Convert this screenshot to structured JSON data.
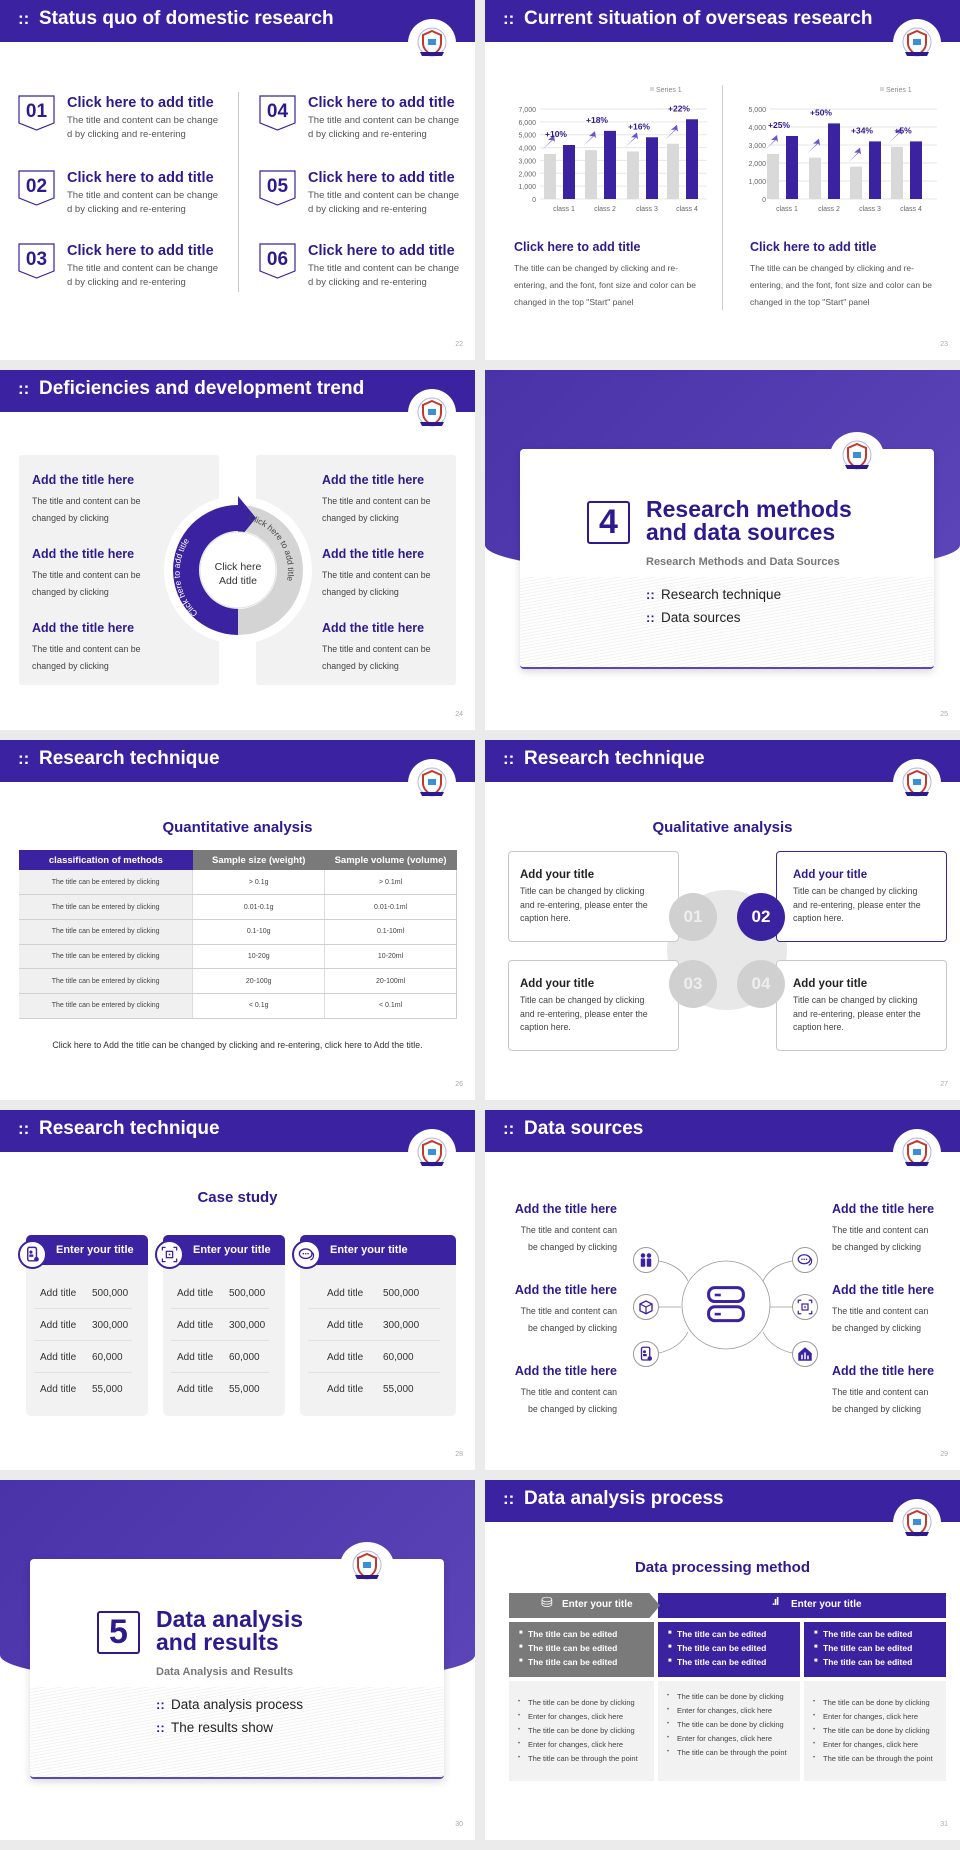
{
  "colors": {
    "primary": "#3b22a0",
    "grey_bar": "#d9d9d9",
    "panel": "#f2f2f2"
  },
  "slides": [
    {
      "title": "Status quo of domestic research",
      "page": "22",
      "items": [
        {
          "num": "01",
          "title": "Click here to add title",
          "desc": "The title and content can be change d by clicking and re-entering"
        },
        {
          "num": "02",
          "title": "Click here to add title",
          "desc": "The title and content can be change d by clicking and re-entering"
        },
        {
          "num": "03",
          "title": "Click here to add title",
          "desc": "The title and content can be change d by clicking and re-entering"
        },
        {
          "num": "04",
          "title": "Click here to add title",
          "desc": "The title and content can be change d by clicking and re-entering"
        },
        {
          "num": "05",
          "title": "Click here to add title",
          "desc": "The title and content can be change d by clicking and re-entering"
        },
        {
          "num": "06",
          "title": "Click here to add title",
          "desc": "The title and content can be change d by clicking and re-entering"
        }
      ]
    },
    {
      "title": "Current situation of overseas research",
      "page": "23",
      "blocks": [
        {
          "title": "Click here to add title",
          "desc": "The title can be changed by clicking and re-entering, and the font, font size and color can be changed in the top \"Start\" panel"
        },
        {
          "title": "Click here to add title",
          "desc": "The title can be changed by clicking and re-entering, and the font, font size and color can be changed in the top \"Start\" panel"
        }
      ]
    },
    {
      "title": "Deficiencies and development trend",
      "page": "24",
      "items": [
        {
          "title": "Add the title here",
          "desc": "The title and content can be changed by clicking"
        },
        {
          "title": "Add the title here",
          "desc": "The title and content can be changed by clicking"
        },
        {
          "title": "Add the title here",
          "desc": "The title and content can be changed by clicking"
        },
        {
          "title": "Add the title here",
          "desc": "The title and content can be changed by clicking"
        },
        {
          "title": "Add the title here",
          "desc": "The title and content can be changed by clicking"
        },
        {
          "title": "Add the title here",
          "desc": "The title and content can be changed by clicking"
        }
      ],
      "center": "Click here Add title",
      "arc_left": "Click here to add title",
      "arc_right": "Click here to add title"
    },
    {
      "number": "4",
      "title_line1": "Research methods",
      "title_line2": "and data sources",
      "subtitle": "Research Methods and Data Sources",
      "bullets": [
        "Research technique",
        "Data sources"
      ],
      "page": "25"
    },
    {
      "title": "Research technique",
      "page": "26",
      "heading": "Quantitative analysis",
      "columns": [
        "classification of methods",
        "Sample size (weight)",
        "Sample volume (volume)"
      ],
      "rows": [
        [
          "The title can be entered by clicking",
          "> 0.1g",
          "> 0.1ml"
        ],
        [
          "The title can be entered by clicking",
          "0.01-0.1g",
          "0.01-0.1ml"
        ],
        [
          "The title can be entered by clicking",
          "0.1-10g",
          "0.1-10ml"
        ],
        [
          "The title can be entered by clicking",
          "10-20g",
          "10-20ml"
        ],
        [
          "The title can be entered by clicking",
          "20-100g",
          "20-100ml"
        ],
        [
          "The title can be entered by clicking",
          "< 0.1g",
          "< 0.1ml"
        ]
      ],
      "footnote": "Click here to Add the title can be changed by clicking and re-entering, click here to Add the title."
    },
    {
      "title": "Research technique",
      "page": "27",
      "heading": "Qualitative analysis",
      "items": [
        {
          "num": "01",
          "title": "Add your title",
          "desc": "Title can be changed by clicking and re-entering, please enter the caption here."
        },
        {
          "num": "02",
          "title": "Add your title",
          "desc": "Title can be changed by clicking and re-entering, please enter the caption here.",
          "active": true
        },
        {
          "num": "03",
          "title": "Add your title",
          "desc": "Title can be changed by clicking and re-entering, please enter the caption here."
        },
        {
          "num": "04",
          "title": "Add your title",
          "desc": "Title can be changed by clicking and re-entering, please enter the caption here."
        }
      ]
    },
    {
      "title": "Research technique",
      "page": "28",
      "heading": "Case study",
      "cards": [
        {
          "icon": "phone-user-icon",
          "title": "Enter your title",
          "rows": [
            [
              "Add title",
              "500,000"
            ],
            [
              "Add title",
              "300,000"
            ],
            [
              "Add title",
              "60,000"
            ],
            [
              "Add title",
              "55,000"
            ]
          ]
        },
        {
          "icon": "qr-scan-icon",
          "title": "Enter your title",
          "rows": [
            [
              "Add title",
              "500,000"
            ],
            [
              "Add title",
              "300,000"
            ],
            [
              "Add title",
              "60,000"
            ],
            [
              "Add title",
              "55,000"
            ]
          ]
        },
        {
          "icon": "chat-bubbles-icon",
          "title": "Enter your title",
          "rows": [
            [
              "Add title",
              "500,000"
            ],
            [
              "Add title",
              "300,000"
            ],
            [
              "Add title",
              "60,000"
            ],
            [
              "Add title",
              "55,000"
            ]
          ]
        }
      ]
    },
    {
      "title": "Data sources",
      "page": "29",
      "items": [
        {
          "icon": "people-icon",
          "title": "Add the title here",
          "desc": "The title and content can be changed by clicking"
        },
        {
          "icon": "cube-icon",
          "title": "Add the title here",
          "desc": "The title and content can be changed by clicking"
        },
        {
          "icon": "phone-user-icon",
          "title": "Add the title here",
          "desc": "The title and content can be changed by clicking"
        },
        {
          "icon": "chat-bubbles-icon",
          "title": "Add the title here",
          "desc": "The title and content can be changed by clicking"
        },
        {
          "icon": "qr-scan-icon",
          "title": "Add the title here",
          "desc": "The title and content can be changed by clicking"
        },
        {
          "icon": "house-chart-icon",
          "title": "Add the title here",
          "desc": "The title and content can be changed by clicking"
        }
      ],
      "center_icon": "server-icon"
    },
    {
      "number": "5",
      "title_line1": "Data analysis",
      "title_line2": "and results",
      "subtitle": "Data Analysis and Results",
      "bullets": [
        "Data analysis process",
        "The results show"
      ],
      "page": "30"
    },
    {
      "title": "Data analysis process",
      "page": "31",
      "heading": "Data processing method",
      "head_left": "Enter your title",
      "head_right": "Enter your title",
      "cols": [
        {
          "top": [
            "The title can be edited",
            "The title can be edited",
            "The title can be edited"
          ],
          "bottom": [
            "The title can be done by clicking",
            "Enter for changes, click here",
            "The title can be done by clicking",
            "Enter for changes, click here",
            "The title can be through the point"
          ]
        },
        {
          "top": [
            "The title can be edited",
            "The title can be edited",
            "The title can be edited"
          ],
          "bottom": [
            "The title can be done by clicking",
            "Enter for changes, click here",
            "The title can be done by clicking",
            "Enter for changes, click here",
            "The title can be through the point"
          ]
        },
        {
          "top": [
            "The title can be edited",
            "The title can be edited",
            "The title can be edited"
          ],
          "bottom": [
            "The title can be done by clicking",
            "Enter for changes, click here",
            "The title can be done by clicking",
            "Enter for changes, click here",
            "The title can be through the point"
          ]
        }
      ]
    }
  ],
  "chart_data": [
    {
      "type": "bar",
      "categories": [
        "class 1",
        "class 2",
        "class 3",
        "class 4"
      ],
      "legend": "Series 1",
      "legend_position": "top-right",
      "ylim": [
        0,
        7000
      ],
      "yticks": [
        "0",
        "1,000",
        "2,000",
        "3,000",
        "4,000",
        "5,000",
        "6,000",
        "7,000"
      ],
      "series": [
        {
          "values": [
            3500,
            3800,
            3700,
            4300
          ]
        },
        {
          "values": [
            4200,
            5300,
            4800,
            6200
          ]
        }
      ],
      "annotations": [
        "+10%",
        "+18%",
        "+16%",
        "+22%"
      ],
      "grid": true
    },
    {
      "type": "bar",
      "categories": [
        "class 1",
        "class 2",
        "class 3",
        "class 4"
      ],
      "legend": "Series 1",
      "legend_position": "top-right",
      "ylim": [
        0,
        5000
      ],
      "yticks": [
        "0",
        "1,000",
        "2,000",
        "3,000",
        "4,000",
        "5,000"
      ],
      "series": [
        {
          "values": [
            2500,
            2300,
            1800,
            2900
          ]
        },
        {
          "values": [
            3500,
            4200,
            3200,
            3200
          ]
        }
      ],
      "annotations": [
        "+25%",
        "+50%",
        "+34%",
        "+5%"
      ],
      "grid": true
    }
  ]
}
